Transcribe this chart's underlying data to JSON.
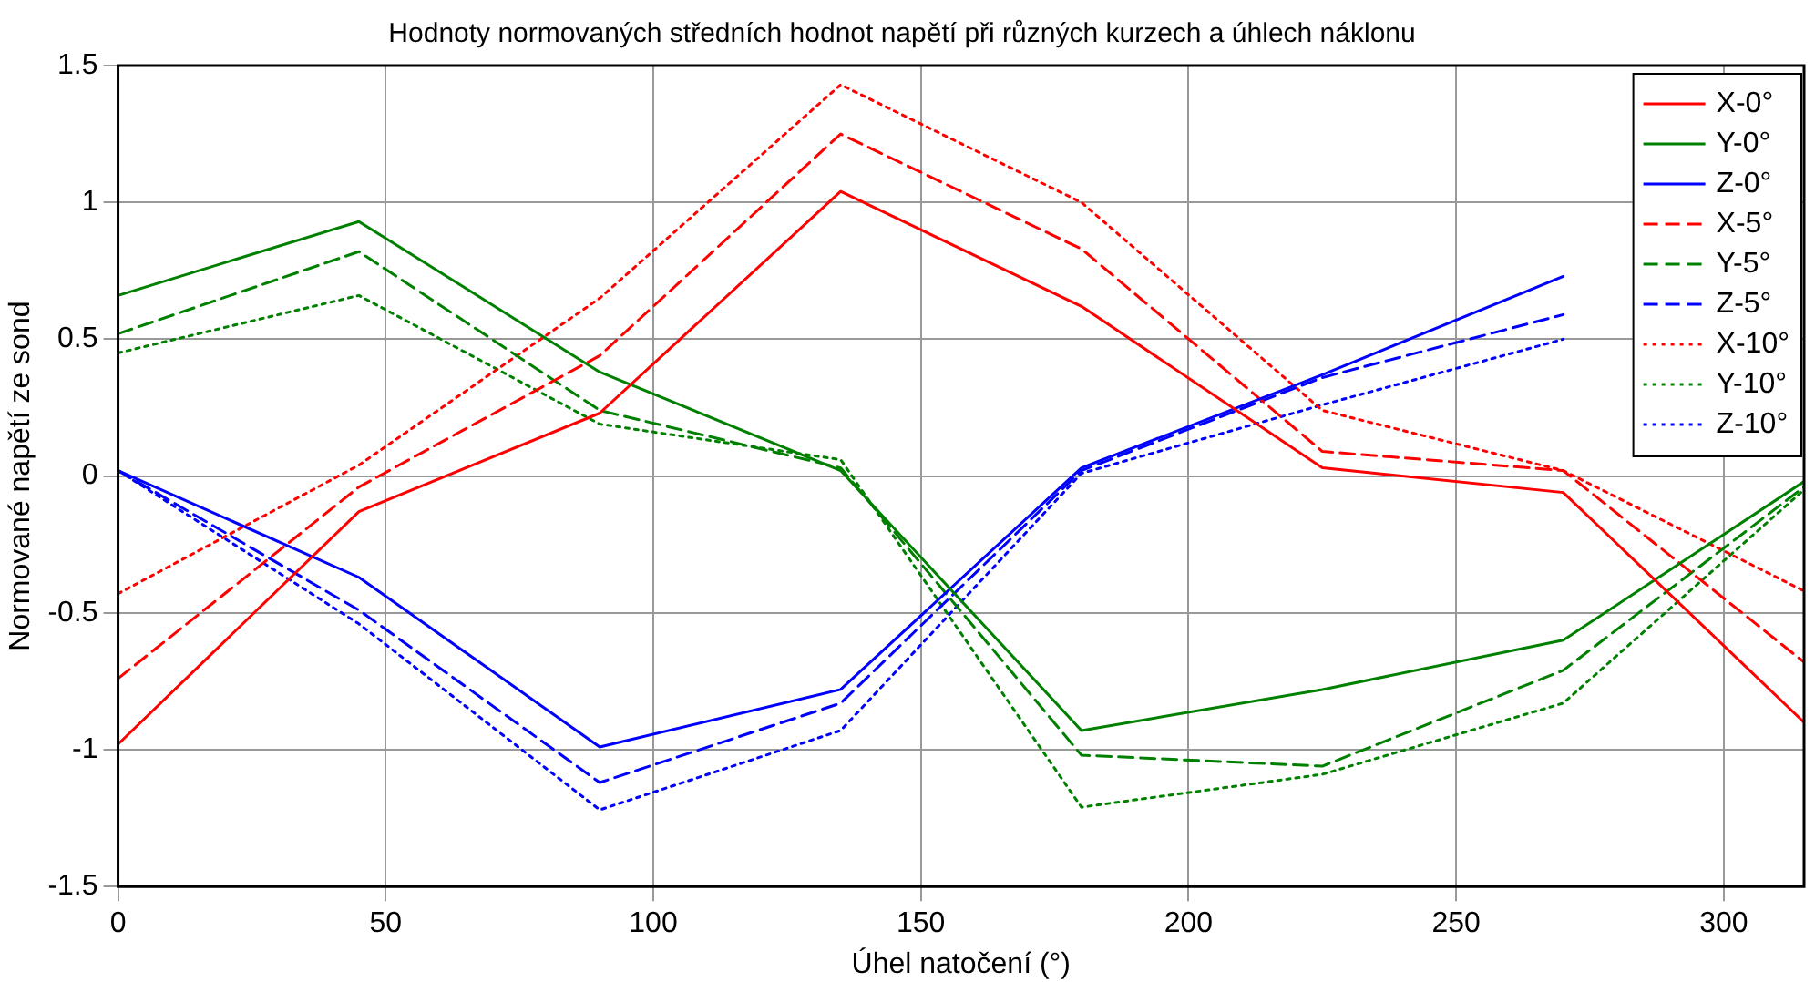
{
  "chart_data": {
    "type": "line",
    "title": "Hodnoty normovaných středních hodnot napětí při různých kurzech a úhlech náklonu",
    "xlabel": "Úhel natočení (°)",
    "ylabel": "Normované napětí ze sond",
    "x": [
      0,
      45,
      90,
      135,
      180,
      225,
      270,
      315
    ],
    "xlim": [
      0,
      315
    ],
    "xticks": [
      0,
      50,
      100,
      150,
      200,
      250,
      300
    ],
    "ylim": [
      -1.5,
      1.5
    ],
    "yticks": [
      -1.5,
      -1,
      -0.5,
      0,
      0.5,
      1,
      1.5
    ],
    "grid": true,
    "legend": "top right",
    "marker": "none",
    "series": [
      {
        "name": "X-0°",
        "color": "#ff0000",
        "line_style": "solid",
        "values": [
          -0.98,
          -0.13,
          0.23,
          1.04,
          0.62,
          0.03,
          -0.06,
          -0.9
        ]
      },
      {
        "name": "Y-0°",
        "color": "#008000",
        "line_style": "solid",
        "values": [
          0.66,
          0.93,
          0.38,
          0.02,
          -0.93,
          -0.78,
          -0.6,
          -0.02
        ]
      },
      {
        "name": "Z-0°",
        "color": "#0000ff",
        "line_style": "solid",
        "values": [
          0.02,
          -0.37,
          -0.99,
          -0.78,
          0.03,
          0.37,
          0.73,
          null
        ]
      },
      {
        "name": "X-5°",
        "color": "#ff0000",
        "line_style": "dashed",
        "values": [
          -0.74,
          -0.04,
          0.44,
          1.25,
          0.83,
          0.09,
          0.02,
          -0.68
        ]
      },
      {
        "name": "Y-5°",
        "color": "#008000",
        "line_style": "dashed",
        "values": [
          0.52,
          0.82,
          0.24,
          0.03,
          -1.02,
          -1.06,
          -0.71,
          -0.04
        ]
      },
      {
        "name": "Z-5°",
        "color": "#0000ff",
        "line_style": "dashed",
        "values": [
          0.02,
          -0.49,
          -1.12,
          -0.83,
          0.02,
          0.36,
          0.59,
          null
        ]
      },
      {
        "name": "X-10°",
        "color": "#ff0000",
        "line_style": "dotted",
        "values": [
          -0.43,
          0.04,
          0.65,
          1.43,
          1.0,
          0.24,
          0.02,
          -0.42
        ]
      },
      {
        "name": "Y-10°",
        "color": "#008000",
        "line_style": "dotted",
        "values": [
          0.45,
          0.66,
          0.19,
          0.06,
          -1.21,
          -1.09,
          -0.83,
          -0.05
        ]
      },
      {
        "name": "Z-10°",
        "color": "#0000ff",
        "line_style": "dotted",
        "values": [
          0.02,
          -0.54,
          -1.22,
          -0.93,
          0.01,
          0.26,
          0.5,
          null
        ]
      }
    ]
  }
}
